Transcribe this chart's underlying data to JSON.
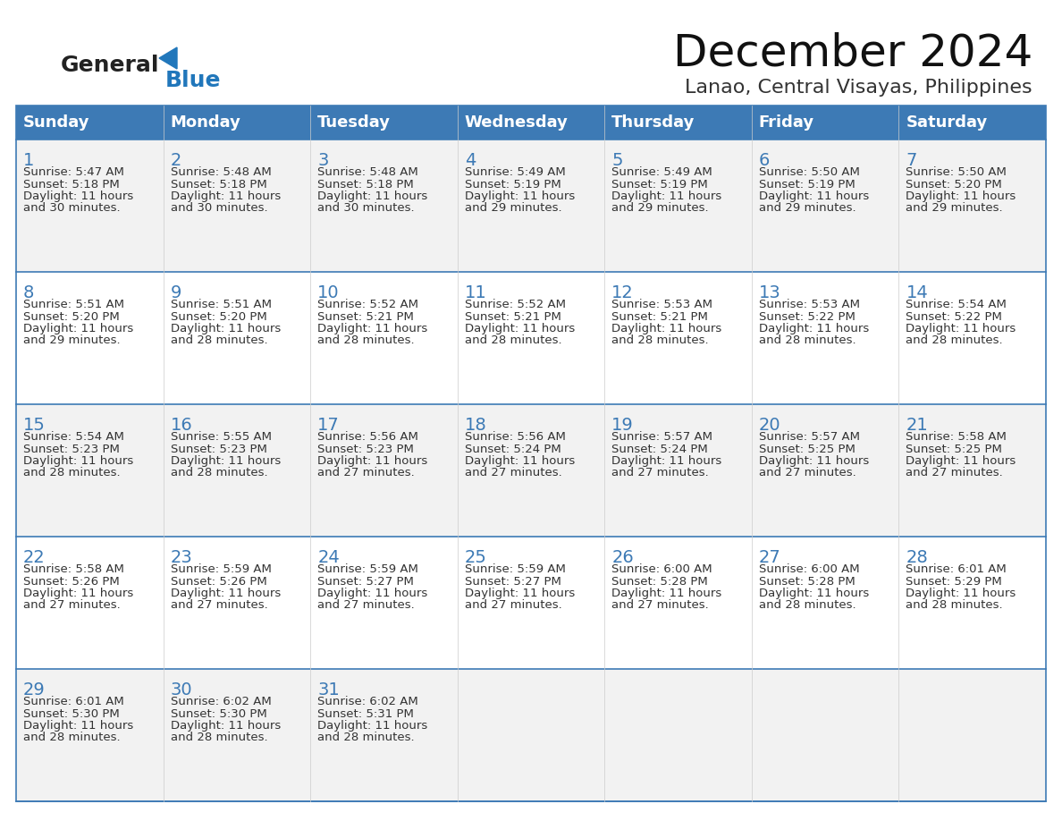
{
  "title": "December 2024",
  "subtitle": "Lanao, Central Visayas, Philippines",
  "days_of_week": [
    "Sunday",
    "Monday",
    "Tuesday",
    "Wednesday",
    "Thursday",
    "Friday",
    "Saturday"
  ],
  "header_bg_color": "#3d7ab5",
  "header_text_color": "#ffffff",
  "cell_bg_color_odd": "#f2f2f2",
  "cell_bg_color_even": "#ffffff",
  "row_line_color": "#3d7ab5",
  "text_color": "#333333",
  "date_text_color": "#3d7ab5",
  "logo_text_general": "General",
  "logo_text_blue": "Blue",
  "logo_color": "#2177bb",
  "weeks": [
    [
      {
        "day": 1,
        "sunrise": "5:47 AM",
        "sunset": "5:18 PM",
        "daylight": "11 hours and 30 minutes."
      },
      {
        "day": 2,
        "sunrise": "5:48 AM",
        "sunset": "5:18 PM",
        "daylight": "11 hours and 30 minutes."
      },
      {
        "day": 3,
        "sunrise": "5:48 AM",
        "sunset": "5:18 PM",
        "daylight": "11 hours and 30 minutes."
      },
      {
        "day": 4,
        "sunrise": "5:49 AM",
        "sunset": "5:19 PM",
        "daylight": "11 hours and 29 minutes."
      },
      {
        "day": 5,
        "sunrise": "5:49 AM",
        "sunset": "5:19 PM",
        "daylight": "11 hours and 29 minutes."
      },
      {
        "day": 6,
        "sunrise": "5:50 AM",
        "sunset": "5:19 PM",
        "daylight": "11 hours and 29 minutes."
      },
      {
        "day": 7,
        "sunrise": "5:50 AM",
        "sunset": "5:20 PM",
        "daylight": "11 hours and 29 minutes."
      }
    ],
    [
      {
        "day": 8,
        "sunrise": "5:51 AM",
        "sunset": "5:20 PM",
        "daylight": "11 hours and 29 minutes."
      },
      {
        "day": 9,
        "sunrise": "5:51 AM",
        "sunset": "5:20 PM",
        "daylight": "11 hours and 28 minutes."
      },
      {
        "day": 10,
        "sunrise": "5:52 AM",
        "sunset": "5:21 PM",
        "daylight": "11 hours and 28 minutes."
      },
      {
        "day": 11,
        "sunrise": "5:52 AM",
        "sunset": "5:21 PM",
        "daylight": "11 hours and 28 minutes."
      },
      {
        "day": 12,
        "sunrise": "5:53 AM",
        "sunset": "5:21 PM",
        "daylight": "11 hours and 28 minutes."
      },
      {
        "day": 13,
        "sunrise": "5:53 AM",
        "sunset": "5:22 PM",
        "daylight": "11 hours and 28 minutes."
      },
      {
        "day": 14,
        "sunrise": "5:54 AM",
        "sunset": "5:22 PM",
        "daylight": "11 hours and 28 minutes."
      }
    ],
    [
      {
        "day": 15,
        "sunrise": "5:54 AM",
        "sunset": "5:23 PM",
        "daylight": "11 hours and 28 minutes."
      },
      {
        "day": 16,
        "sunrise": "5:55 AM",
        "sunset": "5:23 PM",
        "daylight": "11 hours and 28 minutes."
      },
      {
        "day": 17,
        "sunrise": "5:56 AM",
        "sunset": "5:23 PM",
        "daylight": "11 hours and 27 minutes."
      },
      {
        "day": 18,
        "sunrise": "5:56 AM",
        "sunset": "5:24 PM",
        "daylight": "11 hours and 27 minutes."
      },
      {
        "day": 19,
        "sunrise": "5:57 AM",
        "sunset": "5:24 PM",
        "daylight": "11 hours and 27 minutes."
      },
      {
        "day": 20,
        "sunrise": "5:57 AM",
        "sunset": "5:25 PM",
        "daylight": "11 hours and 27 minutes."
      },
      {
        "day": 21,
        "sunrise": "5:58 AM",
        "sunset": "5:25 PM",
        "daylight": "11 hours and 27 minutes."
      }
    ],
    [
      {
        "day": 22,
        "sunrise": "5:58 AM",
        "sunset": "5:26 PM",
        "daylight": "11 hours and 27 minutes."
      },
      {
        "day": 23,
        "sunrise": "5:59 AM",
        "sunset": "5:26 PM",
        "daylight": "11 hours and 27 minutes."
      },
      {
        "day": 24,
        "sunrise": "5:59 AM",
        "sunset": "5:27 PM",
        "daylight": "11 hours and 27 minutes."
      },
      {
        "day": 25,
        "sunrise": "5:59 AM",
        "sunset": "5:27 PM",
        "daylight": "11 hours and 27 minutes."
      },
      {
        "day": 26,
        "sunrise": "6:00 AM",
        "sunset": "5:28 PM",
        "daylight": "11 hours and 27 minutes."
      },
      {
        "day": 27,
        "sunrise": "6:00 AM",
        "sunset": "5:28 PM",
        "daylight": "11 hours and 28 minutes."
      },
      {
        "day": 28,
        "sunrise": "6:01 AM",
        "sunset": "5:29 PM",
        "daylight": "11 hours and 28 minutes."
      }
    ],
    [
      {
        "day": 29,
        "sunrise": "6:01 AM",
        "sunset": "5:30 PM",
        "daylight": "11 hours and 28 minutes."
      },
      {
        "day": 30,
        "sunrise": "6:02 AM",
        "sunset": "5:30 PM",
        "daylight": "11 hours and 28 minutes."
      },
      {
        "day": 31,
        "sunrise": "6:02 AM",
        "sunset": "5:31 PM",
        "daylight": "11 hours and 28 minutes."
      },
      null,
      null,
      null,
      null
    ]
  ]
}
